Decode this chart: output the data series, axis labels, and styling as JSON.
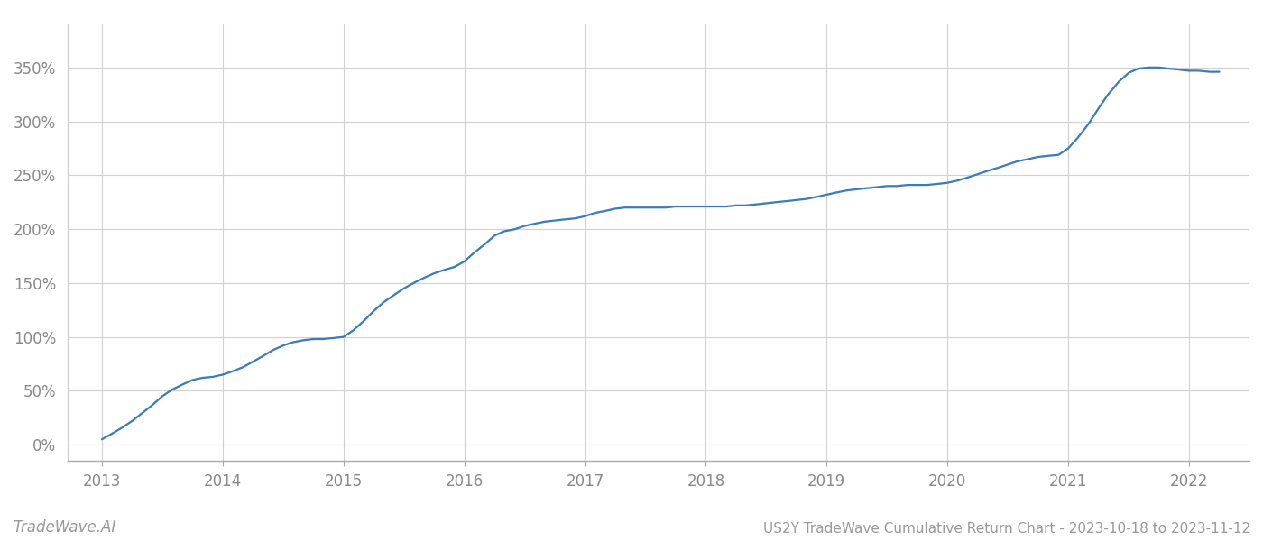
{
  "title": "US2Y TradeWave Cumulative Return Chart - 2023-10-18 to 2023-11-12",
  "watermark": "TradeWave.AI",
  "line_color": "#3a7abf",
  "background_color": "#ffffff",
  "grid_color": "#d0d0d0",
  "x_values": [
    2013.0,
    2013.08,
    2013.17,
    2013.25,
    2013.33,
    2013.42,
    2013.5,
    2013.58,
    2013.67,
    2013.75,
    2013.83,
    2013.92,
    2014.0,
    2014.08,
    2014.17,
    2014.25,
    2014.33,
    2014.42,
    2014.5,
    2014.58,
    2014.67,
    2014.75,
    2014.83,
    2014.92,
    2015.0,
    2015.08,
    2015.17,
    2015.25,
    2015.33,
    2015.42,
    2015.5,
    2015.58,
    2015.67,
    2015.75,
    2015.83,
    2015.92,
    2016.0,
    2016.08,
    2016.17,
    2016.25,
    2016.33,
    2016.42,
    2016.5,
    2016.58,
    2016.67,
    2016.75,
    2016.83,
    2016.92,
    2017.0,
    2017.08,
    2017.17,
    2017.25,
    2017.33,
    2017.42,
    2017.5,
    2017.58,
    2017.67,
    2017.75,
    2017.83,
    2017.92,
    2018.0,
    2018.08,
    2018.17,
    2018.25,
    2018.33,
    2018.42,
    2018.5,
    2018.58,
    2018.67,
    2018.75,
    2018.83,
    2018.92,
    2019.0,
    2019.08,
    2019.17,
    2019.25,
    2019.33,
    2019.42,
    2019.5,
    2019.58,
    2019.67,
    2019.75,
    2019.83,
    2019.92,
    2020.0,
    2020.08,
    2020.17,
    2020.25,
    2020.33,
    2020.42,
    2020.5,
    2020.58,
    2020.67,
    2020.75,
    2020.83,
    2020.92,
    2021.0,
    2021.08,
    2021.17,
    2021.25,
    2021.33,
    2021.42,
    2021.5,
    2021.58,
    2021.67,
    2021.75,
    2021.83,
    2021.92,
    2022.0,
    2022.08,
    2022.17,
    2022.25
  ],
  "y_values": [
    5,
    10,
    16,
    22,
    29,
    37,
    45,
    51,
    56,
    60,
    62,
    63,
    65,
    68,
    72,
    77,
    82,
    88,
    92,
    95,
    97,
    98,
    98,
    99,
    100,
    106,
    115,
    124,
    132,
    139,
    145,
    150,
    155,
    159,
    162,
    165,
    170,
    178,
    186,
    194,
    198,
    200,
    203,
    205,
    207,
    208,
    209,
    210,
    212,
    215,
    217,
    219,
    220,
    220,
    220,
    220,
    220,
    221,
    221,
    221,
    221,
    221,
    221,
    222,
    222,
    223,
    224,
    225,
    226,
    227,
    228,
    230,
    232,
    234,
    236,
    237,
    238,
    239,
    240,
    240,
    241,
    241,
    241,
    242,
    243,
    245,
    248,
    251,
    254,
    257,
    260,
    263,
    265,
    267,
    268,
    269,
    275,
    285,
    298,
    312,
    325,
    337,
    345,
    349,
    350,
    350,
    349,
    348,
    347,
    347,
    346,
    346
  ],
  "xlim": [
    2012.72,
    2022.5
  ],
  "ylim": [
    -15,
    390
  ],
  "yticks": [
    0,
    50,
    100,
    150,
    200,
    250,
    300,
    350
  ],
  "xticks": [
    2013,
    2014,
    2015,
    2016,
    2017,
    2018,
    2019,
    2020,
    2021,
    2022
  ],
  "line_width": 1.6,
  "title_fontsize": 11,
  "tick_fontsize": 12,
  "watermark_fontsize": 12
}
